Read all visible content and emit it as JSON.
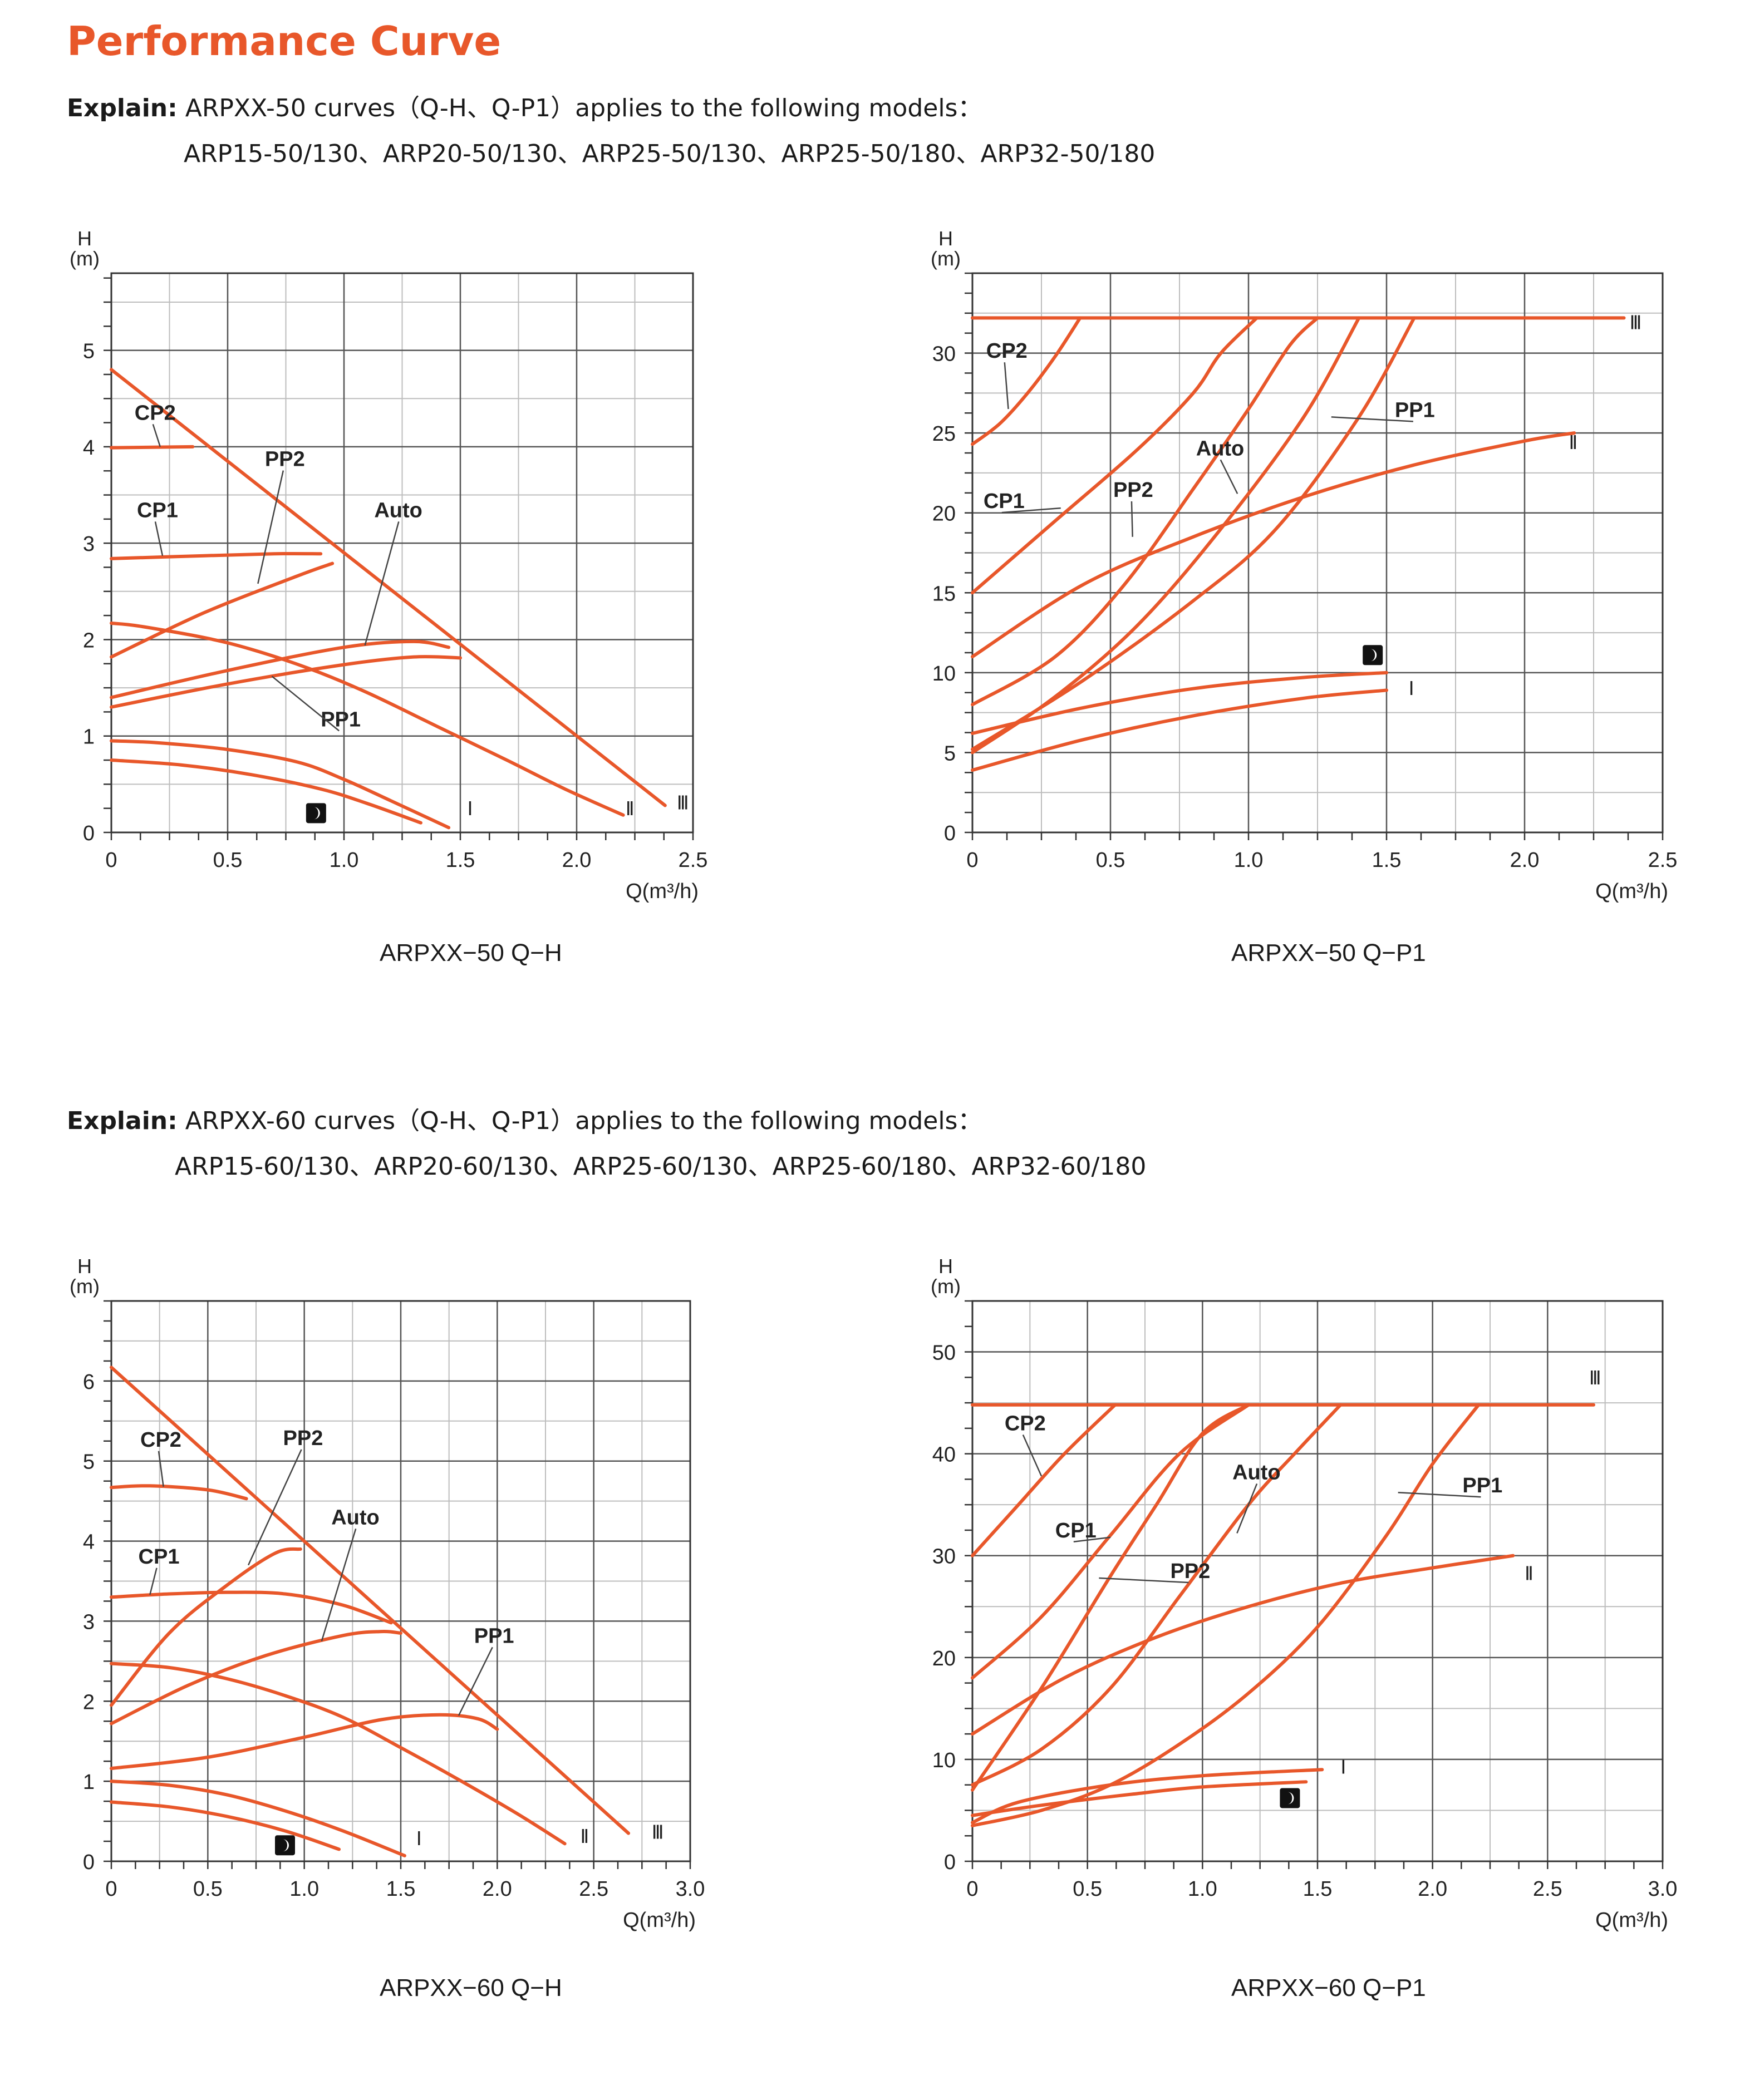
{
  "page_title": "Performance Curve",
  "sections": [
    {
      "explain_label": "Explain:",
      "explain_text": "ARPXX-50 curves（Q-H、Q-P1）applies to the following models：",
      "models": "ARP15-50/130、ARP20-50/130、ARP25-50/130、ARP25-50/180、ARP32-50/180"
    },
    {
      "explain_label": "Explain:",
      "explain_text": "ARPXX-60 curves（Q-H、Q-P1）applies to the following models：",
      "models": "ARP15-60/130、ARP20-60/130、ARP25-60/130、ARP25-60/180、ARP32-60/180"
    }
  ],
  "colors": {
    "accent": "#e8572a",
    "grid": "#555555",
    "minor_grid": "#bdbdbd"
  },
  "chart_data": [
    {
      "type": "line",
      "caption": "ARPXX−50  Q−H",
      "ylabel_1": "H",
      "ylabel_2": "(m)",
      "xlabel": "Q(m³/h)",
      "xlim": [
        0,
        2.5
      ],
      "ylim": [
        0,
        5.8
      ],
      "xticks": [
        0,
        0.5,
        1.0,
        1.5,
        2.0,
        2.5
      ],
      "xtick_labels": [
        "0",
        "0.5",
        "1.0",
        "1.5",
        "2.0",
        "2.5"
      ],
      "yticks": [
        0,
        1,
        2,
        3,
        4,
        5
      ],
      "ytick_labels": [
        "0",
        "1",
        "2",
        "3",
        "4",
        "5"
      ],
      "grid": true,
      "series": [
        {
          "x": [
            0,
            2.38
          ],
          "y": [
            4.8,
            0.28
          ]
        },
        {
          "x": [
            0,
            0.12,
            0.4,
            0.6,
            0.85,
            1.1,
            1.4,
            1.7,
            1.95,
            2.2
          ],
          "y": [
            2.17,
            2.14,
            2.02,
            1.9,
            1.7,
            1.45,
            1.1,
            0.75,
            0.45,
            0.18
          ]
        },
        {
          "x": [
            0,
            0.2,
            0.5,
            0.8,
            1.0,
            1.2,
            1.45
          ],
          "y": [
            0.95,
            0.93,
            0.86,
            0.73,
            0.55,
            0.33,
            0.05
          ]
        },
        {
          "x": [
            0,
            0.3,
            0.6,
            0.9,
            1.1,
            1.33
          ],
          "y": [
            0.75,
            0.7,
            0.6,
            0.45,
            0.3,
            0.1
          ]
        },
        {
          "x": [
            0,
            0.35
          ],
          "y": [
            3.99,
            4.0
          ]
        },
        {
          "x": [
            0,
            0.4,
            0.7,
            0.9
          ],
          "y": [
            2.84,
            2.87,
            2.89,
            2.89
          ]
        },
        {
          "x": [
            0,
            0.4,
            0.8,
            0.95
          ],
          "y": [
            1.82,
            2.28,
            2.66,
            2.79
          ]
        },
        {
          "x": [
            0,
            0.5,
            1.0,
            1.3,
            1.45
          ],
          "y": [
            1.4,
            1.68,
            1.92,
            1.98,
            1.92
          ]
        },
        {
          "x": [
            0,
            0.5,
            1.0,
            1.3,
            1.5
          ],
          "y": [
            1.3,
            1.54,
            1.74,
            1.82,
            1.81
          ]
        }
      ],
      "annotations": [
        {
          "text": "CP2",
          "x": 0.1,
          "y": 4.28,
          "lx": 0.21,
          "ly": 4.0
        },
        {
          "text": "CP1",
          "x": 0.11,
          "y": 3.27,
          "lx": 0.22,
          "ly": 2.87
        },
        {
          "text": "PP2",
          "x": 0.66,
          "y": 3.8,
          "lx": 0.63,
          "ly": 2.58
        },
        {
          "text": "Auto",
          "x": 1.13,
          "y": 3.27,
          "lx": 1.09,
          "ly": 1.94
        },
        {
          "text": "PP1",
          "x": 0.9,
          "y": 1.1,
          "lx": 0.69,
          "ly": 1.62
        },
        {
          "text": "I",
          "x": 1.53,
          "y": 0.18
        },
        {
          "text": "II",
          "x": 2.21,
          "y": 0.18
        },
        {
          "text": "III",
          "x": 2.43,
          "y": 0.24
        }
      ],
      "night_mode_icon": {
        "x": 0.88,
        "y": 0.2,
        "name": "night-mode-icon"
      }
    },
    {
      "type": "line",
      "caption": "ARPXX−50  Q−P1",
      "ylabel_1": "H",
      "ylabel_2": "(m)",
      "xlabel": "Q(m³/h)",
      "xlim": [
        0,
        2.5
      ],
      "ylim": [
        0,
        35
      ],
      "xticks": [
        0,
        0.5,
        1.0,
        1.5,
        2.0,
        2.5
      ],
      "xtick_labels": [
        "0",
        "0.5",
        "1.0",
        "1.5",
        "2.0",
        "2.5"
      ],
      "yticks": [
        0,
        5,
        10,
        15,
        20,
        25,
        30
      ],
      "ytick_labels": [
        "0",
        "5",
        "10",
        "15",
        "20",
        "25",
        "30"
      ],
      "grid": true,
      "series": [
        {
          "x": [
            0,
            2.36
          ],
          "y": [
            32.2,
            32.2
          ]
        },
        {
          "x": [
            0,
            0.1,
            0.2,
            0.3,
            0.39
          ],
          "y": [
            24.3,
            25.6,
            27.5,
            29.8,
            32.2
          ]
        },
        {
          "x": [
            0,
            0.3,
            0.6,
            0.8,
            0.9,
            1.03
          ],
          "y": [
            15,
            19.5,
            24,
            27.5,
            30,
            32.2
          ]
        },
        {
          "x": [
            0,
            0.3,
            0.55,
            0.8,
            1.0,
            1.15,
            1.25
          ],
          "y": [
            8,
            11,
            15.5,
            21.5,
            26.5,
            30.5,
            32.2
          ]
        },
        {
          "x": [
            0,
            0.3,
            0.6,
            0.9,
            1.2,
            1.4
          ],
          "y": [
            5,
            8.5,
            13,
            19,
            26,
            32.2
          ]
        },
        {
          "x": [
            0,
            0.4,
            0.8,
            1.1,
            1.4,
            1.6
          ],
          "y": [
            5.2,
            9.5,
            14.5,
            19,
            26,
            32.2
          ]
        },
        {
          "x": [
            0,
            0.4,
            0.8,
            1.2,
            1.6,
            2.0,
            2.18
          ],
          "y": [
            11,
            15.5,
            18.5,
            21,
            23,
            24.5,
            25
          ]
        },
        {
          "x": [
            0,
            0.4,
            0.8,
            1.2,
            1.5
          ],
          "y": [
            6.2,
            7.8,
            9,
            9.7,
            10
          ]
        },
        {
          "x": [
            0,
            0.4,
            0.8,
            1.2,
            1.5
          ],
          "y": [
            3.9,
            5.8,
            7.3,
            8.4,
            8.9
          ]
        }
      ],
      "annotations": [
        {
          "text": "CP2",
          "x": 0.05,
          "y": 29.7,
          "lx": 0.13,
          "ly": 26.5
        },
        {
          "text": "CP1",
          "x": 0.04,
          "y": 20.3,
          "lx": 0.32,
          "ly": 20.3
        },
        {
          "text": "PP2",
          "x": 0.51,
          "y": 21.0,
          "lx": 0.58,
          "ly": 18.5
        },
        {
          "text": "Auto",
          "x": 0.81,
          "y": 23.6,
          "lx": 0.96,
          "ly": 21.2
        },
        {
          "text": "PP1",
          "x": 1.53,
          "y": 26.0,
          "lx": 1.3,
          "ly": 26.0
        },
        {
          "text": "I",
          "x": 1.58,
          "y": 8.6
        },
        {
          "text": "II",
          "x": 2.16,
          "y": 24.0
        },
        {
          "text": "III",
          "x": 2.38,
          "y": 31.5
        }
      ],
      "night_mode_icon": {
        "x": 1.45,
        "y": 11.1,
        "name": "night-mode-icon"
      }
    },
    {
      "type": "line",
      "caption": "ARPXX−60  Q−H",
      "ylabel_1": "H",
      "ylabel_2": "(m)",
      "xlabel": "Q(m³/h)",
      "xlim": [
        0,
        3.0
      ],
      "ylim": [
        0,
        7.0
      ],
      "xticks": [
        0,
        0.5,
        1.0,
        1.5,
        2.0,
        2.5,
        3.0
      ],
      "xtick_labels": [
        "0",
        "0.5",
        "1.0",
        "1.5",
        "2.0",
        "2.5",
        "3.0"
      ],
      "yticks": [
        0,
        1,
        2,
        3,
        4,
        5,
        6
      ],
      "ytick_labels": [
        "0",
        "1",
        "2",
        "3",
        "4",
        "5",
        "6"
      ],
      "grid": true,
      "series": [
        {
          "x": [
            0,
            2.68
          ],
          "y": [
            6.17,
            0.35
          ]
        },
        {
          "x": [
            0,
            0.2,
            0.5,
            0.7
          ],
          "y": [
            4.67,
            4.69,
            4.64,
            4.53
          ]
        },
        {
          "x": [
            0,
            0.3,
            0.6,
            0.9,
            1.2,
            1.45
          ],
          "y": [
            3.3,
            3.34,
            3.36,
            3.34,
            3.2,
            2.98
          ]
        },
        {
          "x": [
            0,
            0.3,
            0.6,
            0.85,
            0.98
          ],
          "y": [
            1.95,
            2.85,
            3.45,
            3.85,
            3.9
          ]
        },
        {
          "x": [
            0,
            0.4,
            0.8,
            1.2,
            1.4,
            1.5
          ],
          "y": [
            1.72,
            2.2,
            2.57,
            2.82,
            2.87,
            2.85
          ]
        },
        {
          "x": [
            0,
            0.5,
            1.0,
            1.4,
            1.7,
            1.9,
            2.0
          ],
          "y": [
            1.16,
            1.3,
            1.55,
            1.77,
            1.83,
            1.78,
            1.65
          ]
        },
        {
          "x": [
            0,
            0.3,
            0.6,
            0.9,
            1.2,
            1.5,
            1.8,
            2.1,
            2.35
          ],
          "y": [
            2.47,
            2.42,
            2.28,
            2.07,
            1.8,
            1.42,
            1.02,
            0.6,
            0.22
          ]
        },
        {
          "x": [
            0,
            0.3,
            0.6,
            0.9,
            1.2,
            1.52
          ],
          "y": [
            1.0,
            0.95,
            0.83,
            0.63,
            0.38,
            0.07
          ]
        },
        {
          "x": [
            0,
            0.3,
            0.6,
            0.9,
            1.18
          ],
          "y": [
            0.74,
            0.68,
            0.56,
            0.38,
            0.15
          ]
        }
      ],
      "annotations": [
        {
          "text": "CP2",
          "x": 0.15,
          "y": 5.18,
          "lx": 0.27,
          "ly": 4.68
        },
        {
          "text": "CP1",
          "x": 0.14,
          "y": 3.72,
          "lx": 0.2,
          "ly": 3.33
        },
        {
          "text": "PP2",
          "x": 0.89,
          "y": 5.2,
          "lx": 0.71,
          "ly": 3.7
        },
        {
          "text": "Auto",
          "x": 1.14,
          "y": 4.21,
          "lx": 1.09,
          "ly": 2.75
        },
        {
          "text": "PP1",
          "x": 1.88,
          "y": 2.73,
          "lx": 1.8,
          "ly": 1.82
        },
        {
          "text": "I",
          "x": 1.58,
          "y": 0.2
        },
        {
          "text": "II",
          "x": 2.43,
          "y": 0.23
        },
        {
          "text": "III",
          "x": 2.8,
          "y": 0.28
        }
      ],
      "night_mode_icon": {
        "x": 0.9,
        "y": 0.2,
        "name": "night-mode-icon"
      }
    },
    {
      "type": "line",
      "caption": "ARPXX−60  Q−P1",
      "ylabel_1": "H",
      "ylabel_2": "(m)",
      "xlabel": "Q(m³/h)",
      "xlim": [
        0,
        3.0
      ],
      "ylim": [
        0,
        55
      ],
      "xticks": [
        0,
        0.5,
        1.0,
        1.5,
        2.0,
        2.5,
        3.0
      ],
      "xtick_labels": [
        "0",
        "0.5",
        "1.0",
        "1.5",
        "2.0",
        "2.5",
        "3.0"
      ],
      "yticks": [
        0,
        10,
        20,
        30,
        40,
        50
      ],
      "ytick_labels": [
        "0",
        "10",
        "20",
        "30",
        "40",
        "50"
      ],
      "grid": true,
      "series": [
        {
          "x": [
            0,
            2.7
          ],
          "y": [
            44.8,
            44.8
          ]
        },
        {
          "x": [
            0,
            0.2,
            0.4,
            0.62
          ],
          "y": [
            30,
            35,
            40,
            44.8
          ]
        },
        {
          "x": [
            0,
            0.3,
            0.6,
            0.9,
            1.2
          ],
          "y": [
            18,
            24,
            32,
            40,
            44.8
          ]
        },
        {
          "x": [
            0,
            0.3,
            0.6,
            0.8,
            1.0,
            1.2
          ],
          "y": [
            7,
            17,
            28,
            35,
            42,
            44.8
          ]
        },
        {
          "x": [
            0,
            0.3,
            0.6,
            0.9,
            1.2,
            1.4,
            1.6
          ],
          "y": [
            7.5,
            11,
            17,
            26,
            35,
            40,
            44.8
          ]
        },
        {
          "x": [
            0,
            0.3,
            0.6,
            0.9,
            1.2,
            1.5,
            1.8,
            2.0,
            2.2
          ],
          "y": [
            3.5,
            5,
            7.5,
            11.5,
            16.5,
            23,
            32,
            39,
            44.8
          ]
        },
        {
          "x": [
            0,
            0.4,
            0.8,
            1.2,
            1.6,
            2.0,
            2.35
          ],
          "y": [
            12.5,
            18,
            22,
            25,
            27.3,
            28.8,
            30
          ]
        },
        {
          "x": [
            0,
            0.2,
            0.6,
            1.0,
            1.52
          ],
          "y": [
            3.8,
            5.8,
            7.5,
            8.4,
            9
          ]
        },
        {
          "x": [
            0,
            0.3,
            0.7,
            1.0,
            1.45
          ],
          "y": [
            4.5,
            5.5,
            6.6,
            7.3,
            7.8
          ]
        }
      ],
      "annotations": [
        {
          "text": "CP2",
          "x": 0.14,
          "y": 42.3,
          "lx": 0.3,
          "ly": 37.8
        },
        {
          "text": "CP1",
          "x": 0.36,
          "y": 31.8,
          "lx": 0.6,
          "ly": 31.8
        },
        {
          "text": "PP2",
          "x": 0.86,
          "y": 27.8,
          "lx": 0.55,
          "ly": 27.8
        },
        {
          "text": "Auto",
          "x": 1.13,
          "y": 37.5,
          "lx": 1.15,
          "ly": 32.2
        },
        {
          "text": "PP1",
          "x": 2.13,
          "y": 36.2,
          "lx": 1.85,
          "ly": 36.2
        },
        {
          "text": "I",
          "x": 1.6,
          "y": 8.6
        },
        {
          "text": "II",
          "x": 2.4,
          "y": 27.6
        },
        {
          "text": "III",
          "x": 2.68,
          "y": 46.8
        }
      ],
      "night_mode_icon": {
        "x": 1.38,
        "y": 6.2,
        "name": "night-mode-icon"
      }
    }
  ]
}
